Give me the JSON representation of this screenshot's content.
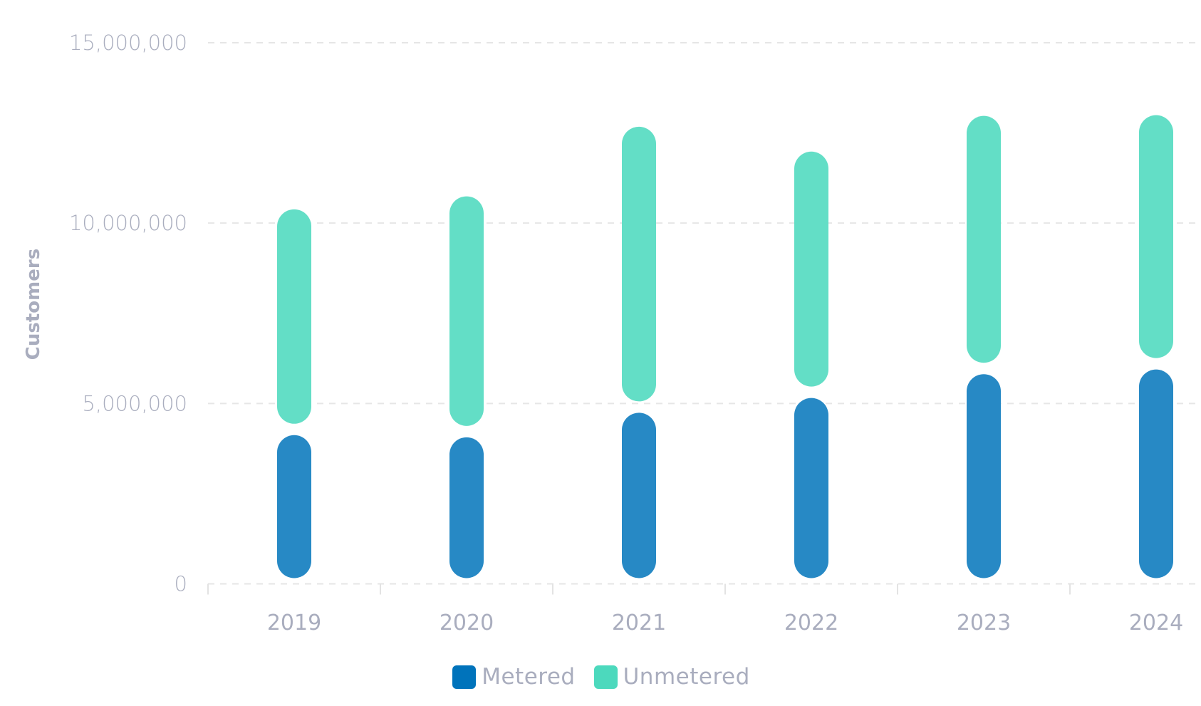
{
  "chart_data": {
    "type": "bar",
    "stacked": true,
    "title": "",
    "xlabel": "",
    "ylabel": "Customers",
    "ylim": [
      0,
      15000000
    ],
    "yticks": [
      0,
      5000000,
      10000000,
      15000000
    ],
    "ytick_labels": [
      "0",
      "5,000,000",
      "10,000,000",
      "15,000,000"
    ],
    "grid": true,
    "legend_position": "bottom",
    "categories": [
      "2019",
      "2020",
      "2021",
      "2022",
      "2023",
      "2024"
    ],
    "series": [
      {
        "name": "Metered",
        "color": "#2789c5",
        "legend_color": "#0073bb",
        "values": [
          4280000,
          4220000,
          4900000,
          5310000,
          5970000,
          6100000
        ]
      },
      {
        "name": "Unmetered",
        "color": "#63dec6",
        "legend_color": "#4cd9bd",
        "values": [
          6260000,
          6680000,
          7930000,
          6830000,
          7160000,
          7050000
        ]
      }
    ]
  },
  "legend": {
    "items": [
      {
        "label": "Metered",
        "color": "#0073bb"
      },
      {
        "label": "Unmetered",
        "color": "#4cd9bd"
      }
    ]
  }
}
